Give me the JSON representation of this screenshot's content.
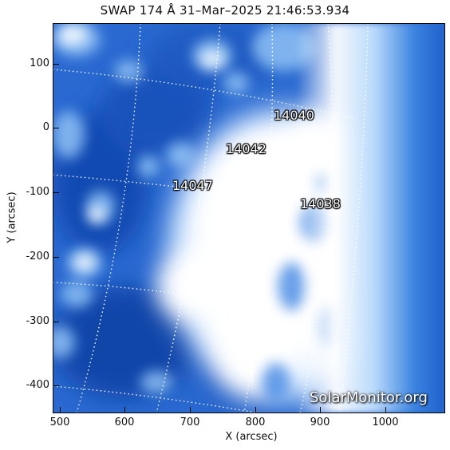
{
  "title": "SWAP 174 Å 31–Mar–2025 21:46:53.934",
  "axes": {
    "xlabel": "X (arcsec)",
    "ylabel": "Y (arcsec)",
    "xticks": [
      "500",
      "600",
      "700",
      "800",
      "900",
      "1000"
    ],
    "yticks": [
      "100",
      "0",
      "-100",
      "-200",
      "-300",
      "-400"
    ],
    "xrange": [
      488,
      1090
    ],
    "yrange": [
      -445,
      160
    ]
  },
  "regions": [
    {
      "id": "14040",
      "label": "14040"
    },
    {
      "id": "14042",
      "label": "14042"
    },
    {
      "id": "14047",
      "label": "14047"
    },
    {
      "id": "14038",
      "label": "14038"
    }
  ],
  "watermark": "SolarMonitor.org",
  "colors": {
    "dark": "#0d3ea6",
    "mid": "#2e73d6",
    "light": "#8ec1f5",
    "bright": "#ffffff"
  }
}
